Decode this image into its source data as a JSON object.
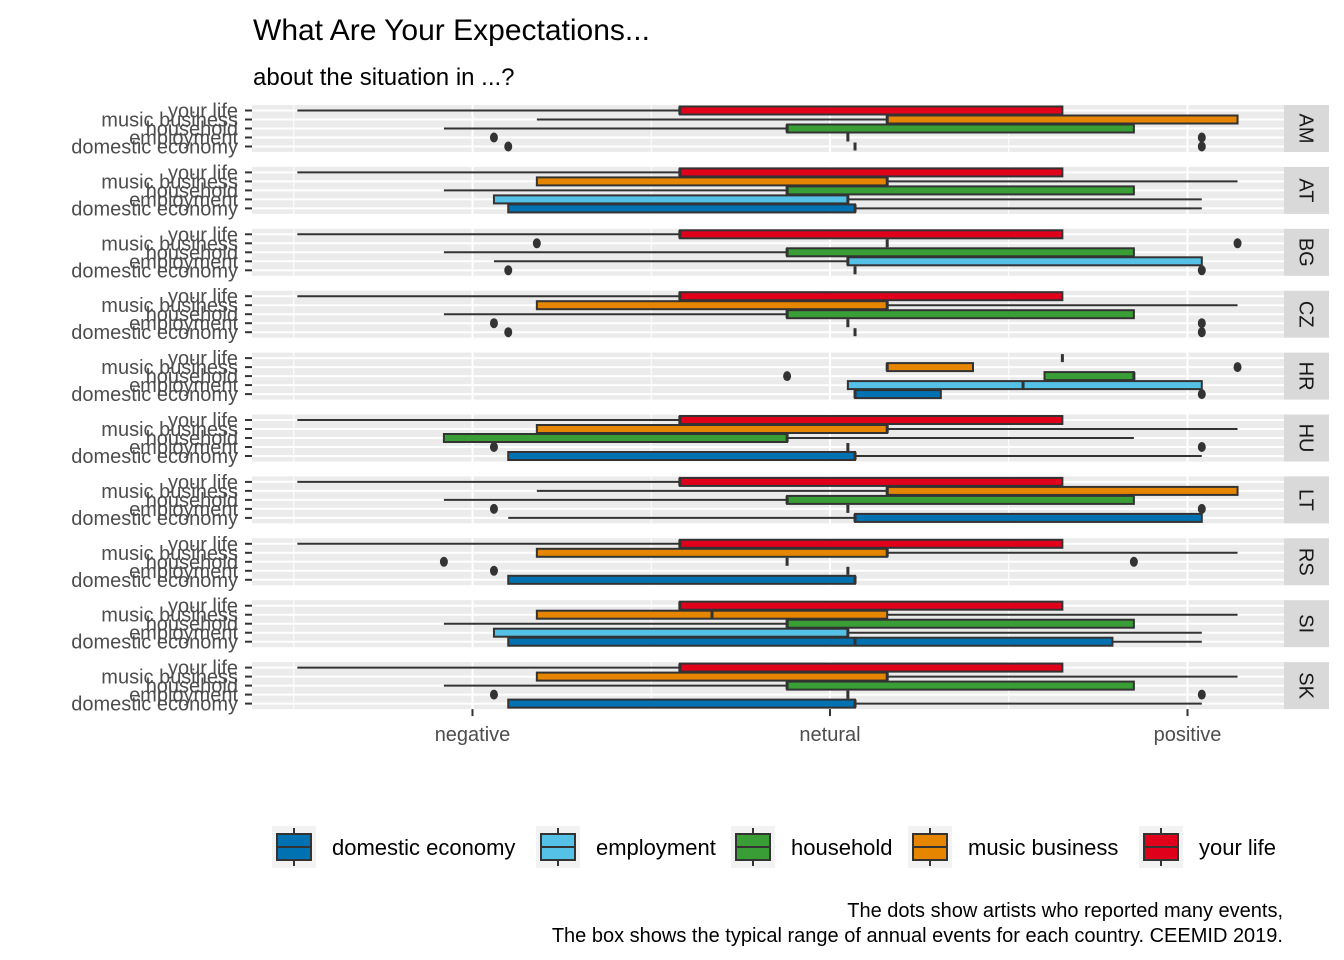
{
  "chart_data": {
    "type": "boxplot",
    "orientation": "horizontal",
    "title": "What Are Your Expectations...",
    "subtitle": "about the situation in ...?",
    "xlabel": "",
    "ylabel": "",
    "x_scale": {
      "negative": -1,
      "netural": 0,
      "positive": 1
    },
    "xlim": [
      -1.6,
      1.27
    ],
    "x_ticks": [
      {
        "value": -1,
        "label": "negative"
      },
      {
        "value": 0,
        "label": "netural"
      },
      {
        "value": 1,
        "label": "positive"
      }
    ],
    "grid": true,
    "categories": [
      "your life",
      "music business",
      "household",
      "employment",
      "domestic economy"
    ],
    "legend": {
      "placement": "bottom",
      "entries": [
        {
          "name": "domestic economy",
          "color": "#0072B2"
        },
        {
          "name": "employment",
          "color": "#56C1E6"
        },
        {
          "name": "household",
          "color": "#3A9E36"
        },
        {
          "name": "music business",
          "color": "#E68600"
        },
        {
          "name": "your life",
          "color": "#E0001C"
        }
      ]
    },
    "facets": [
      {
        "panel": "AM",
        "boxes": {
          "your life": {
            "min": -1.49,
            "q1": -0.42,
            "median": -0.42,
            "q3": 0.65,
            "max": 0.65,
            "outliers": []
          },
          "music business": {
            "min": -0.82,
            "q1": 0.16,
            "median": 0.16,
            "q3": 1.14,
            "max": 1.14,
            "outliers": []
          },
          "household": {
            "min": -1.08,
            "q1": -0.12,
            "median": -0.12,
            "q3": 0.85,
            "max": 0.85,
            "outliers": []
          },
          "employment": {
            "min": 0.05,
            "q1": 0.05,
            "median": 0.05,
            "q3": 0.05,
            "max": 0.05,
            "outliers": [
              -0.94,
              1.04
            ]
          },
          "domestic economy": {
            "min": 0.07,
            "q1": 0.07,
            "median": 0.07,
            "q3": 0.07,
            "max": 0.07,
            "outliers": [
              -0.9,
              1.04
            ]
          }
        }
      },
      {
        "panel": "AT",
        "boxes": {
          "your life": {
            "min": -1.49,
            "q1": -0.42,
            "median": -0.42,
            "q3": 0.65,
            "max": 0.65,
            "outliers": []
          },
          "music business": {
            "min": -0.82,
            "q1": -0.82,
            "median": 0.16,
            "q3": 0.16,
            "max": 1.14,
            "outliers": []
          },
          "household": {
            "min": -1.08,
            "q1": -0.12,
            "median": -0.12,
            "q3": 0.85,
            "max": 0.85,
            "outliers": []
          },
          "employment": {
            "min": -0.94,
            "q1": -0.94,
            "median": 0.05,
            "q3": 0.05,
            "max": 1.04,
            "outliers": []
          },
          "domestic economy": {
            "min": -0.9,
            "q1": -0.9,
            "median": 0.07,
            "q3": 0.07,
            "max": 1.04,
            "outliers": []
          }
        }
      },
      {
        "panel": "BG",
        "boxes": {
          "your life": {
            "min": -1.49,
            "q1": -0.42,
            "median": -0.42,
            "q3": 0.65,
            "max": 0.65,
            "outliers": []
          },
          "music business": {
            "min": 0.16,
            "q1": 0.16,
            "median": 0.16,
            "q3": 0.16,
            "max": 0.16,
            "outliers": [
              -0.82,
              1.14
            ]
          },
          "household": {
            "min": -1.08,
            "q1": -0.12,
            "median": -0.12,
            "q3": 0.85,
            "max": 0.85,
            "outliers": []
          },
          "employment": {
            "min": -0.94,
            "q1": 0.05,
            "median": 0.05,
            "q3": 1.04,
            "max": 1.04,
            "outliers": []
          },
          "domestic economy": {
            "min": 0.07,
            "q1": 0.07,
            "median": 0.07,
            "q3": 0.07,
            "max": 0.07,
            "outliers": [
              -0.9,
              1.04
            ]
          }
        }
      },
      {
        "panel": "CZ",
        "boxes": {
          "your life": {
            "min": -1.49,
            "q1": -0.42,
            "median": -0.42,
            "q3": 0.65,
            "max": 0.65,
            "outliers": []
          },
          "music business": {
            "min": -0.82,
            "q1": -0.82,
            "median": 0.16,
            "q3": 0.16,
            "max": 1.14,
            "outliers": []
          },
          "household": {
            "min": -1.08,
            "q1": -0.12,
            "median": -0.12,
            "q3": 0.85,
            "max": 0.85,
            "outliers": []
          },
          "employment": {
            "min": 0.05,
            "q1": 0.05,
            "median": 0.05,
            "q3": 0.05,
            "max": 0.05,
            "outliers": [
              -0.94,
              1.04
            ]
          },
          "domestic economy": {
            "min": 0.07,
            "q1": 0.07,
            "median": 0.07,
            "q3": 0.07,
            "max": 0.07,
            "outliers": [
              -0.9,
              1.04
            ]
          }
        }
      },
      {
        "panel": "HR",
        "boxes": {
          "your life": {
            "min": 0.65,
            "q1": 0.65,
            "median": 0.65,
            "q3": 0.65,
            "max": 0.65,
            "outliers": []
          },
          "music business": {
            "min": 0.16,
            "q1": 0.16,
            "median": 0.16,
            "q3": 0.4,
            "max": 0.4,
            "outliers": [
              1.14
            ]
          },
          "household": {
            "min": 0.6,
            "q1": 0.6,
            "median": 0.85,
            "q3": 0.85,
            "max": 0.85,
            "outliers": [
              -0.12
            ]
          },
          "employment": {
            "min": 0.05,
            "q1": 0.05,
            "median": 0.54,
            "q3": 1.04,
            "max": 1.04,
            "outliers": []
          },
          "domestic economy": {
            "min": 0.07,
            "q1": 0.07,
            "median": 0.07,
            "q3": 0.31,
            "max": 0.31,
            "outliers": [
              1.04
            ]
          }
        }
      },
      {
        "panel": "HU",
        "boxes": {
          "your life": {
            "min": -1.49,
            "q1": -0.42,
            "median": -0.42,
            "q3": 0.65,
            "max": 0.65,
            "outliers": []
          },
          "music business": {
            "min": -0.82,
            "q1": -0.82,
            "median": 0.16,
            "q3": 0.16,
            "max": 1.14,
            "outliers": []
          },
          "household": {
            "min": -1.08,
            "q1": -1.08,
            "median": -0.12,
            "q3": -0.12,
            "max": 0.85,
            "outliers": []
          },
          "employment": {
            "min": 0.05,
            "q1": 0.05,
            "median": 0.05,
            "q3": 0.05,
            "max": 0.05,
            "outliers": [
              -0.94,
              1.04
            ]
          },
          "domestic economy": {
            "min": -0.9,
            "q1": -0.9,
            "median": 0.07,
            "q3": 0.07,
            "max": 1.04,
            "outliers": []
          }
        }
      },
      {
        "panel": "LT",
        "boxes": {
          "your life": {
            "min": -1.49,
            "q1": -0.42,
            "median": -0.42,
            "q3": 0.65,
            "max": 0.65,
            "outliers": []
          },
          "music business": {
            "min": -0.82,
            "q1": 0.16,
            "median": 0.16,
            "q3": 1.14,
            "max": 1.14,
            "outliers": []
          },
          "household": {
            "min": -1.08,
            "q1": -0.12,
            "median": -0.12,
            "q3": 0.85,
            "max": 0.85,
            "outliers": []
          },
          "employment": {
            "min": 0.05,
            "q1": 0.05,
            "median": 0.05,
            "q3": 0.05,
            "max": 0.05,
            "outliers": [
              -0.94,
              1.04
            ]
          },
          "domestic economy": {
            "min": -0.9,
            "q1": 0.07,
            "median": 0.07,
            "q3": 1.04,
            "max": 1.04,
            "outliers": []
          }
        }
      },
      {
        "panel": "RS",
        "boxes": {
          "your life": {
            "min": -1.49,
            "q1": -0.42,
            "median": -0.42,
            "q3": 0.65,
            "max": 0.65,
            "outliers": []
          },
          "music business": {
            "min": -0.82,
            "q1": -0.82,
            "median": 0.16,
            "q3": 0.16,
            "max": 1.14,
            "outliers": []
          },
          "household": {
            "min": -0.12,
            "q1": -0.12,
            "median": -0.12,
            "q3": -0.12,
            "max": -0.12,
            "outliers": [
              -1.08,
              0.85
            ]
          },
          "employment": {
            "min": 0.05,
            "q1": 0.05,
            "median": 0.05,
            "q3": 0.05,
            "max": 0.05,
            "outliers": [
              -0.94
            ]
          },
          "domestic economy": {
            "min": -0.9,
            "q1": -0.9,
            "median": 0.07,
            "q3": 0.07,
            "max": 0.07,
            "outliers": []
          }
        }
      },
      {
        "panel": "SI",
        "boxes": {
          "your life": {
            "min": -0.42,
            "q1": -0.42,
            "median": -0.42,
            "q3": 0.65,
            "max": 0.65,
            "outliers": []
          },
          "music business": {
            "min": -0.82,
            "q1": -0.82,
            "median": -0.33,
            "q3": 0.16,
            "max": 1.14,
            "outliers": []
          },
          "household": {
            "min": -1.08,
            "q1": -0.12,
            "median": -0.12,
            "q3": 0.85,
            "max": 0.85,
            "outliers": []
          },
          "employment": {
            "min": -0.94,
            "q1": -0.94,
            "median": 0.05,
            "q3": 0.05,
            "max": 1.04,
            "outliers": []
          },
          "domestic economy": {
            "min": -0.9,
            "q1": -0.9,
            "median": 0.07,
            "q3": 0.79,
            "max": 1.04,
            "outliers": []
          }
        }
      },
      {
        "panel": "SK",
        "boxes": {
          "your life": {
            "min": -1.49,
            "q1": -0.42,
            "median": -0.42,
            "q3": 0.65,
            "max": 0.65,
            "outliers": []
          },
          "music business": {
            "min": -0.82,
            "q1": -0.82,
            "median": 0.16,
            "q3": 0.16,
            "max": 1.14,
            "outliers": []
          },
          "household": {
            "min": -1.08,
            "q1": -0.12,
            "median": -0.12,
            "q3": 0.85,
            "max": 0.85,
            "outliers": []
          },
          "employment": {
            "min": 0.05,
            "q1": 0.05,
            "median": 0.05,
            "q3": 0.05,
            "max": 0.05,
            "outliers": [
              -0.94,
              1.04
            ]
          },
          "domestic economy": {
            "min": -0.9,
            "q1": -0.9,
            "median": 0.07,
            "q3": 0.07,
            "max": 1.04,
            "outliers": []
          }
        }
      }
    ],
    "caption_lines": [
      "The dots show artists who reported many events,",
      "The box shows the typical range of annual events for each country. CEEMID 2019."
    ]
  }
}
